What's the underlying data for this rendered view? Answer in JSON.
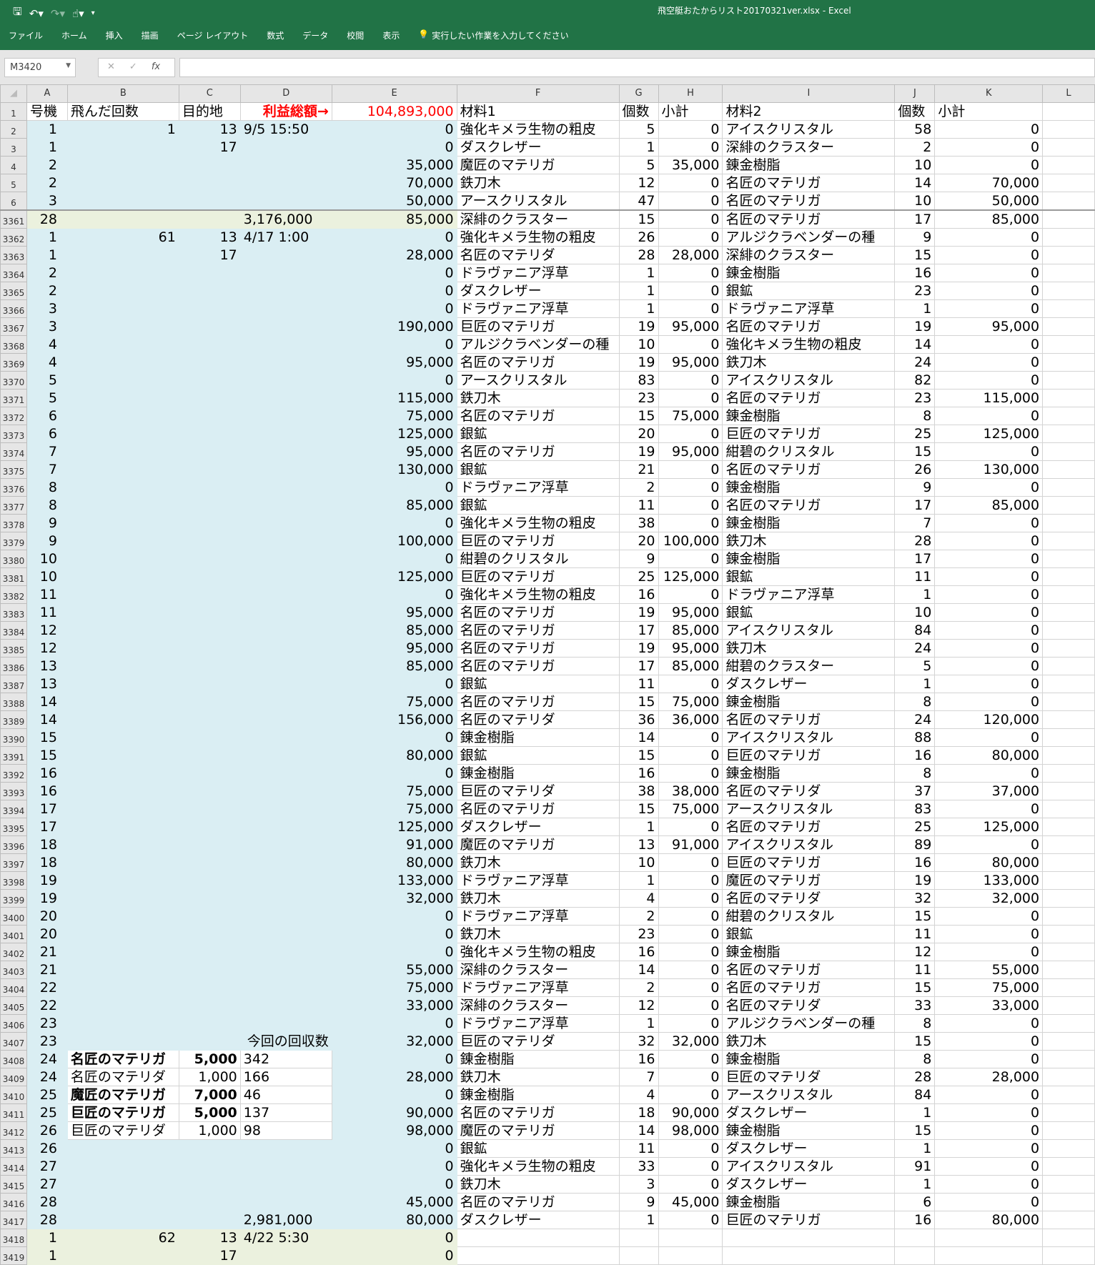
{
  "window": {
    "title": "飛空艇おたからリスト20170321ver.xlsx  -  Excel",
    "accent": "#217346"
  },
  "qat": {
    "icons": [
      "save-icon",
      "undo-icon",
      "redo-icon",
      "touch-mode-icon",
      "customize-icon"
    ]
  },
  "menu": {
    "items": [
      "ファイル",
      "ホーム",
      "挿入",
      "描画",
      "ページ レイアウト",
      "数式",
      "データ",
      "校閲",
      "表示"
    ],
    "tell_me": "実行したい作業を入力してください"
  },
  "formula_bar": {
    "name_box": "M3420",
    "cancel": "✕",
    "enter": "✓",
    "fx": "fx",
    "value": ""
  },
  "columns": [
    "A",
    "B",
    "C",
    "D",
    "E",
    "F",
    "G",
    "H",
    "I",
    "J",
    "K",
    "L"
  ],
  "header_row": {
    "num": "1",
    "cells": [
      "号機",
      "飛んだ回数",
      "目的地",
      "利益総額→",
      "104,893,000",
      "材料1",
      "個数",
      "小計",
      "材料2",
      "個数",
      "小計",
      ""
    ]
  },
  "rows": [
    {
      "num": "2",
      "cells": [
        "1",
        "1",
        "13",
        "9/5 15:50",
        "0",
        "強化キメラ生物の粗皮",
        "5",
        "0",
        "アイスクリスタル",
        "58",
        "0"
      ]
    },
    {
      "num": "3",
      "cells": [
        "1",
        "",
        "17",
        "",
        "0",
        "ダスクレザー",
        "1",
        "0",
        "深緋のクラスター",
        "2",
        "0"
      ]
    },
    {
      "num": "4",
      "cells": [
        "2",
        "",
        "",
        "",
        "35,000",
        "魔匠のマテリガ",
        "5",
        "35,000",
        "錬金樹脂",
        "10",
        "0"
      ]
    },
    {
      "num": "5",
      "cells": [
        "2",
        "",
        "",
        "",
        "70,000",
        "鉄刀木",
        "12",
        "0",
        "名匠のマテリガ",
        "14",
        "70,000"
      ]
    },
    {
      "num": "6",
      "cells": [
        "3",
        "",
        "",
        "",
        "50,000",
        "アースクリスタル",
        "47",
        "0",
        "名匠のマテリガ",
        "10",
        "50,000"
      ]
    },
    {
      "num": "3361",
      "highlight": "green",
      "split": true,
      "cells": [
        "28",
        "",
        "",
        "3,176,000",
        "85,000",
        "深緋のクラスター",
        "15",
        "0",
        "名匠のマテリガ",
        "17",
        "85,000"
      ]
    },
    {
      "num": "3362",
      "cells": [
        "1",
        "61",
        "13",
        "4/17 1:00",
        "0",
        "強化キメラ生物の粗皮",
        "26",
        "0",
        "アルジクラベンダーの種",
        "9",
        "0"
      ]
    },
    {
      "num": "3363",
      "cells": [
        "1",
        "",
        "17",
        "",
        "28,000",
        "名匠のマテリダ",
        "28",
        "28,000",
        "深緋のクラスター",
        "15",
        "0"
      ]
    },
    {
      "num": "3364",
      "cells": [
        "2",
        "",
        "",
        "",
        "0",
        "ドラヴァニア浮草",
        "1",
        "0",
        "錬金樹脂",
        "16",
        "0"
      ]
    },
    {
      "num": "3365",
      "cells": [
        "2",
        "",
        "",
        "",
        "0",
        "ダスクレザー",
        "1",
        "0",
        "銀鉱",
        "23",
        "0"
      ]
    },
    {
      "num": "3366",
      "cells": [
        "3",
        "",
        "",
        "",
        "0",
        "ドラヴァニア浮草",
        "1",
        "0",
        "ドラヴァニア浮草",
        "1",
        "0"
      ]
    },
    {
      "num": "3367",
      "cells": [
        "3",
        "",
        "",
        "",
        "190,000",
        "巨匠のマテリガ",
        "19",
        "95,000",
        "名匠のマテリガ",
        "19",
        "95,000"
      ]
    },
    {
      "num": "3368",
      "cells": [
        "4",
        "",
        "",
        "",
        "0",
        "アルジクラベンダーの種",
        "10",
        "0",
        "強化キメラ生物の粗皮",
        "14",
        "0"
      ]
    },
    {
      "num": "3369",
      "cells": [
        "4",
        "",
        "",
        "",
        "95,000",
        "名匠のマテリガ",
        "19",
        "95,000",
        "鉄刀木",
        "24",
        "0"
      ]
    },
    {
      "num": "3370",
      "cells": [
        "5",
        "",
        "",
        "",
        "0",
        "アースクリスタル",
        "83",
        "0",
        "アイスクリスタル",
        "82",
        "0"
      ]
    },
    {
      "num": "3371",
      "cells": [
        "5",
        "",
        "",
        "",
        "115,000",
        "鉄刀木",
        "23",
        "0",
        "名匠のマテリガ",
        "23",
        "115,000"
      ]
    },
    {
      "num": "3372",
      "cells": [
        "6",
        "",
        "",
        "",
        "75,000",
        "名匠のマテリガ",
        "15",
        "75,000",
        "錬金樹脂",
        "8",
        "0"
      ]
    },
    {
      "num": "3373",
      "cells": [
        "6",
        "",
        "",
        "",
        "125,000",
        "銀鉱",
        "20",
        "0",
        "巨匠のマテリガ",
        "25",
        "125,000"
      ]
    },
    {
      "num": "3374",
      "cells": [
        "7",
        "",
        "",
        "",
        "95,000",
        "名匠のマテリガ",
        "19",
        "95,000",
        "紺碧のクリスタル",
        "15",
        "0"
      ]
    },
    {
      "num": "3375",
      "cells": [
        "7",
        "",
        "",
        "",
        "130,000",
        "銀鉱",
        "21",
        "0",
        "名匠のマテリガ",
        "26",
        "130,000"
      ]
    },
    {
      "num": "3376",
      "cells": [
        "8",
        "",
        "",
        "",
        "0",
        "ドラヴァニア浮草",
        "2",
        "0",
        "錬金樹脂",
        "9",
        "0"
      ]
    },
    {
      "num": "3377",
      "cells": [
        "8",
        "",
        "",
        "",
        "85,000",
        "銀鉱",
        "11",
        "0",
        "名匠のマテリガ",
        "17",
        "85,000"
      ]
    },
    {
      "num": "3378",
      "cells": [
        "9",
        "",
        "",
        "",
        "0",
        "強化キメラ生物の粗皮",
        "38",
        "0",
        "錬金樹脂",
        "7",
        "0"
      ]
    },
    {
      "num": "3379",
      "cells": [
        "9",
        "",
        "",
        "",
        "100,000",
        "巨匠のマテリガ",
        "20",
        "100,000",
        "鉄刀木",
        "28",
        "0"
      ]
    },
    {
      "num": "3380",
      "cells": [
        "10",
        "",
        "",
        "",
        "0",
        "紺碧のクリスタル",
        "9",
        "0",
        "錬金樹脂",
        "17",
        "0"
      ]
    },
    {
      "num": "3381",
      "cells": [
        "10",
        "",
        "",
        "",
        "125,000",
        "巨匠のマテリガ",
        "25",
        "125,000",
        "銀鉱",
        "11",
        "0"
      ]
    },
    {
      "num": "3382",
      "cells": [
        "11",
        "",
        "",
        "",
        "0",
        "強化キメラ生物の粗皮",
        "16",
        "0",
        "ドラヴァニア浮草",
        "1",
        "0"
      ]
    },
    {
      "num": "3383",
      "cells": [
        "11",
        "",
        "",
        "",
        "95,000",
        "名匠のマテリガ",
        "19",
        "95,000",
        "銀鉱",
        "10",
        "0"
      ]
    },
    {
      "num": "3384",
      "cells": [
        "12",
        "",
        "",
        "",
        "85,000",
        "名匠のマテリガ",
        "17",
        "85,000",
        "アイスクリスタル",
        "84",
        "0"
      ]
    },
    {
      "num": "3385",
      "cells": [
        "12",
        "",
        "",
        "",
        "95,000",
        "名匠のマテリガ",
        "19",
        "95,000",
        "鉄刀木",
        "24",
        "0"
      ]
    },
    {
      "num": "3386",
      "cells": [
        "13",
        "",
        "",
        "",
        "85,000",
        "名匠のマテリガ",
        "17",
        "85,000",
        "紺碧のクラスター",
        "5",
        "0"
      ]
    },
    {
      "num": "3387",
      "cells": [
        "13",
        "",
        "",
        "",
        "0",
        "銀鉱",
        "11",
        "0",
        "ダスクレザー",
        "1",
        "0"
      ]
    },
    {
      "num": "3388",
      "cells": [
        "14",
        "",
        "",
        "",
        "75,000",
        "名匠のマテリガ",
        "15",
        "75,000",
        "錬金樹脂",
        "8",
        "0"
      ]
    },
    {
      "num": "3389",
      "cells": [
        "14",
        "",
        "",
        "",
        "156,000",
        "名匠のマテリダ",
        "36",
        "36,000",
        "名匠のマテリガ",
        "24",
        "120,000"
      ]
    },
    {
      "num": "3390",
      "cells": [
        "15",
        "",
        "",
        "",
        "0",
        "錬金樹脂",
        "14",
        "0",
        "アイスクリスタル",
        "88",
        "0"
      ]
    },
    {
      "num": "3391",
      "cells": [
        "15",
        "",
        "",
        "",
        "80,000",
        "銀鉱",
        "15",
        "0",
        "巨匠のマテリガ",
        "16",
        "80,000"
      ]
    },
    {
      "num": "3392",
      "cells": [
        "16",
        "",
        "",
        "",
        "0",
        "錬金樹脂",
        "16",
        "0",
        "錬金樹脂",
        "8",
        "0"
      ]
    },
    {
      "num": "3393",
      "cells": [
        "16",
        "",
        "",
        "",
        "75,000",
        "巨匠のマテリダ",
        "38",
        "38,000",
        "名匠のマテリダ",
        "37",
        "37,000"
      ]
    },
    {
      "num": "3394",
      "cells": [
        "17",
        "",
        "",
        "",
        "75,000",
        "名匠のマテリガ",
        "15",
        "75,000",
        "アースクリスタル",
        "83",
        "0"
      ]
    },
    {
      "num": "3395",
      "cells": [
        "17",
        "",
        "",
        "",
        "125,000",
        "ダスクレザー",
        "1",
        "0",
        "名匠のマテリガ",
        "25",
        "125,000"
      ]
    },
    {
      "num": "3396",
      "cells": [
        "18",
        "",
        "",
        "",
        "91,000",
        "魔匠のマテリガ",
        "13",
        "91,000",
        "アイスクリスタル",
        "89",
        "0"
      ]
    },
    {
      "num": "3397",
      "cells": [
        "18",
        "",
        "",
        "",
        "80,000",
        "鉄刀木",
        "10",
        "0",
        "巨匠のマテリガ",
        "16",
        "80,000"
      ]
    },
    {
      "num": "3398",
      "cells": [
        "19",
        "",
        "",
        "",
        "133,000",
        "ドラヴァニア浮草",
        "1",
        "0",
        "魔匠のマテリガ",
        "19",
        "133,000"
      ]
    },
    {
      "num": "3399",
      "cells": [
        "19",
        "",
        "",
        "",
        "32,000",
        "鉄刀木",
        "4",
        "0",
        "名匠のマテリダ",
        "32",
        "32,000"
      ]
    },
    {
      "num": "3400",
      "cells": [
        "20",
        "",
        "",
        "",
        "0",
        "ドラヴァニア浮草",
        "2",
        "0",
        "紺碧のクリスタル",
        "15",
        "0"
      ]
    },
    {
      "num": "3401",
      "cells": [
        "20",
        "",
        "",
        "",
        "0",
        "鉄刀木",
        "23",
        "0",
        "銀鉱",
        "11",
        "0"
      ]
    },
    {
      "num": "3402",
      "cells": [
        "21",
        "",
        "",
        "",
        "0",
        "強化キメラ生物の粗皮",
        "16",
        "0",
        "錬金樹脂",
        "12",
        "0"
      ]
    },
    {
      "num": "3403",
      "cells": [
        "21",
        "",
        "",
        "",
        "55,000",
        "深緋のクラスター",
        "14",
        "0",
        "名匠のマテリガ",
        "11",
        "55,000"
      ]
    },
    {
      "num": "3404",
      "cells": [
        "22",
        "",
        "",
        "",
        "75,000",
        "ドラヴァニア浮草",
        "2",
        "0",
        "名匠のマテリガ",
        "15",
        "75,000"
      ]
    },
    {
      "num": "3405",
      "cells": [
        "22",
        "",
        "",
        "",
        "33,000",
        "深緋のクラスター",
        "12",
        "0",
        "名匠のマテリダ",
        "33",
        "33,000"
      ]
    },
    {
      "num": "3406",
      "cells": [
        "23",
        "",
        "",
        "",
        "0",
        "ドラヴァニア浮草",
        "1",
        "0",
        "アルジクラベンダーの種",
        "8",
        "0"
      ]
    },
    {
      "num": "3407",
      "cells": [
        "23",
        "",
        "",
        "今回の回収数",
        "32,000",
        "巨匠のマテリダ",
        "32",
        "32,000",
        "鉄刀木",
        "15",
        "0"
      ]
    },
    {
      "num": "3408",
      "summary": true,
      "bold": true,
      "cells": [
        "24",
        "名匠のマテリガ",
        "5,000",
        "342",
        "0",
        "錬金樹脂",
        "16",
        "0",
        "錬金樹脂",
        "8",
        "0"
      ]
    },
    {
      "num": "3409",
      "summary": true,
      "cells": [
        "24",
        "名匠のマテリダ",
        "1,000",
        "166",
        "28,000",
        "鉄刀木",
        "7",
        "0",
        "巨匠のマテリダ",
        "28",
        "28,000"
      ]
    },
    {
      "num": "3410",
      "summary": true,
      "bold": true,
      "cells": [
        "25",
        "魔匠のマテリガ",
        "7,000",
        "46",
        "0",
        "錬金樹脂",
        "4",
        "0",
        "アースクリスタル",
        "84",
        "0"
      ]
    },
    {
      "num": "3411",
      "summary": true,
      "bold": true,
      "cells": [
        "25",
        "巨匠のマテリガ",
        "5,000",
        "137",
        "90,000",
        "名匠のマテリガ",
        "18",
        "90,000",
        "ダスクレザー",
        "1",
        "0"
      ]
    },
    {
      "num": "3412",
      "summary": true,
      "cells": [
        "26",
        "巨匠のマテリダ",
        "1,000",
        "98",
        "98,000",
        "魔匠のマテリガ",
        "14",
        "98,000",
        "錬金樹脂",
        "15",
        "0"
      ]
    },
    {
      "num": "3413",
      "cells": [
        "26",
        "",
        "",
        "",
        "0",
        "銀鉱",
        "11",
        "0",
        "ダスクレザー",
        "1",
        "0"
      ]
    },
    {
      "num": "3414",
      "cells": [
        "27",
        "",
        "",
        "",
        "0",
        "強化キメラ生物の粗皮",
        "33",
        "0",
        "アイスクリスタル",
        "91",
        "0"
      ]
    },
    {
      "num": "3415",
      "cells": [
        "27",
        "",
        "",
        "",
        "0",
        "鉄刀木",
        "3",
        "0",
        "ダスクレザー",
        "1",
        "0"
      ]
    },
    {
      "num": "3416",
      "cells": [
        "28",
        "",
        "",
        "",
        "45,000",
        "名匠のマテリガ",
        "9",
        "45,000",
        "錬金樹脂",
        "6",
        "0"
      ]
    },
    {
      "num": "3417",
      "cells": [
        "28",
        "",
        "",
        "2,981,000",
        "80,000",
        "ダスクレザー",
        "1",
        "0",
        "巨匠のマテリガ",
        "16",
        "80,000"
      ]
    },
    {
      "num": "3418",
      "highlight": "green",
      "cells": [
        "1",
        "62",
        "13",
        "4/22 5:30",
        "0",
        "",
        "",
        "",
        "",
        "",
        ""
      ]
    },
    {
      "num": "3419",
      "highlight": "green",
      "cells": [
        "1",
        "",
        "17",
        "",
        "0",
        "",
        "",
        "",
        "",
        "",
        ""
      ]
    }
  ],
  "colors": {
    "highlight_blue": "#daeef3",
    "highlight_green": "#ebf1de",
    "profit_red": "#ff0000"
  }
}
